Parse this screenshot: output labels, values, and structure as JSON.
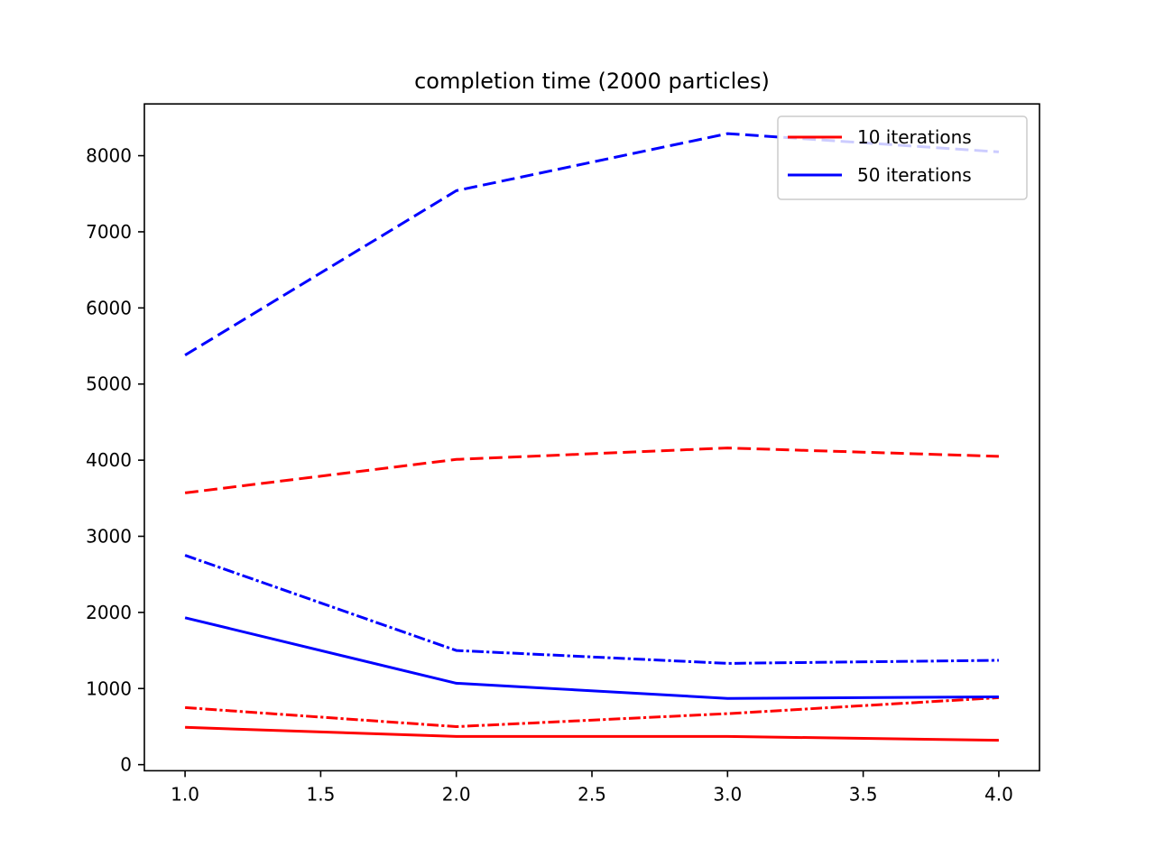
{
  "chart_data": {
    "type": "line",
    "title": "completion time (2000 particles)",
    "xlabel": "",
    "ylabel": "",
    "xlim": [
      0.85,
      4.15
    ],
    "ylim": [
      -80,
      8680
    ],
    "x_ticks": [
      1.0,
      1.5,
      2.0,
      2.5,
      3.0,
      3.5,
      4.0
    ],
    "x_tick_labels": [
      "1.0",
      "1.5",
      "2.0",
      "2.5",
      "3.0",
      "3.5",
      "4.0"
    ],
    "y_ticks": [
      0,
      1000,
      2000,
      3000,
      4000,
      5000,
      6000,
      7000,
      8000
    ],
    "y_tick_labels": [
      "0",
      "1000",
      "2000",
      "3000",
      "4000",
      "5000",
      "6000",
      "7000",
      "8000"
    ],
    "grid": false,
    "legend_position": "top-right",
    "legend": [
      {
        "label": "10 iterations",
        "color": "#ff0000"
      },
      {
        "label": "50 iterations",
        "color": "#0000ff"
      }
    ],
    "series": [
      {
        "color": "#ff0000",
        "style": "solid",
        "x": [
          1,
          2,
          3,
          4
        ],
        "y": [
          490,
          370,
          370,
          320
        ]
      },
      {
        "color": "#ff0000",
        "style": "dashdot",
        "x": [
          1,
          2,
          3,
          4
        ],
        "y": [
          750,
          500,
          670,
          880
        ]
      },
      {
        "color": "#ff0000",
        "style": "dashed",
        "x": [
          1,
          2,
          3,
          4
        ],
        "y": [
          3570,
          4010,
          4160,
          4050
        ]
      },
      {
        "color": "#0000ff",
        "style": "solid",
        "x": [
          1,
          2,
          3,
          4
        ],
        "y": [
          1930,
          1070,
          870,
          890
        ]
      },
      {
        "color": "#0000ff",
        "style": "dashdot",
        "x": [
          1,
          2,
          3,
          4
        ],
        "y": [
          2750,
          1500,
          1330,
          1370
        ]
      },
      {
        "color": "#0000ff",
        "style": "dashed",
        "x": [
          1,
          2,
          3,
          4
        ],
        "y": [
          5380,
          7540,
          8290,
          8050
        ]
      }
    ]
  }
}
